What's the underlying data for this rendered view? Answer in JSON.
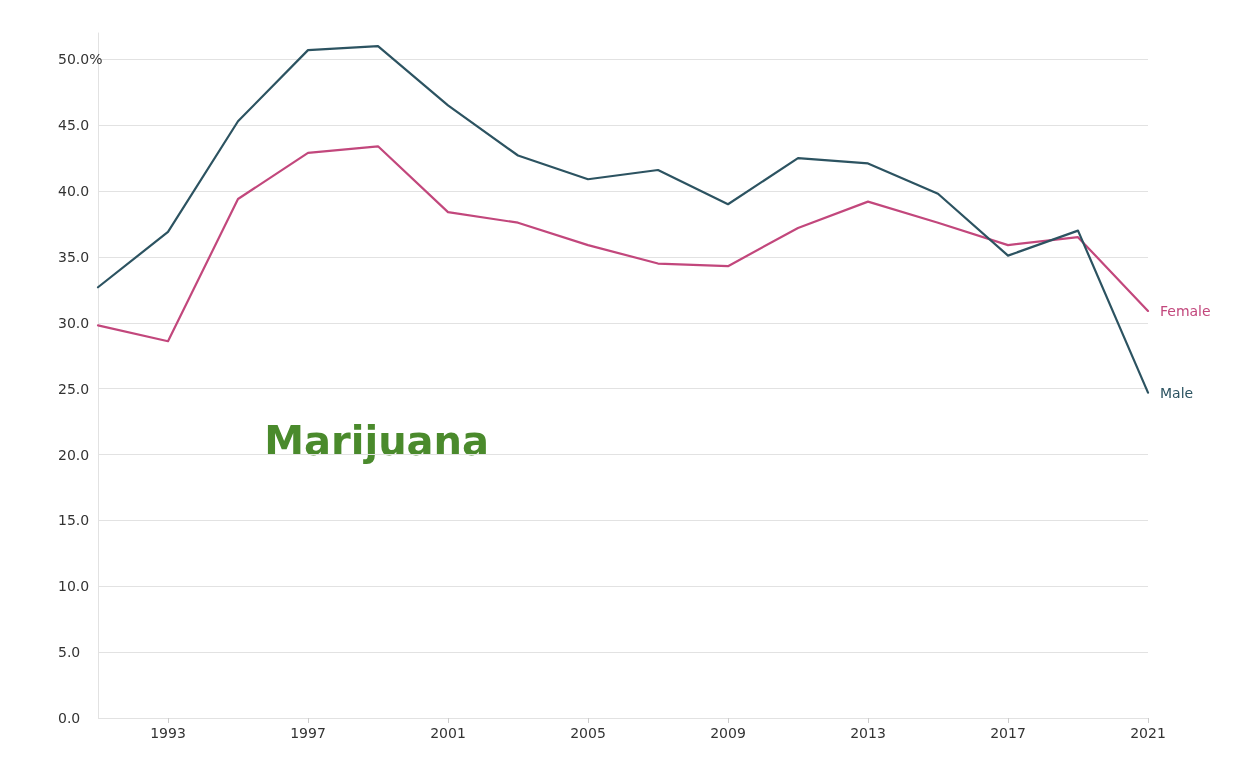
{
  "chart_data": {
    "type": "line",
    "annotations": [
      "Marijuana"
    ],
    "x": [
      1991,
      1993,
      1995,
      1997,
      1999,
      2001,
      2003,
      2005,
      2007,
      2009,
      2011,
      2013,
      2015,
      2017,
      2019,
      2021
    ],
    "series": [
      {
        "name": "Female",
        "color": "#c2477c",
        "values": [
          29.8,
          28.6,
          39.4,
          42.9,
          43.4,
          38.4,
          37.6,
          35.9,
          34.5,
          34.3,
          37.2,
          39.2,
          37.6,
          35.9,
          36.5,
          30.9
        ]
      },
      {
        "name": "Male",
        "color": "#2c5361",
        "values": [
          32.7,
          36.9,
          45.3,
          50.7,
          51.0,
          46.5,
          42.7,
          40.9,
          41.6,
          39.0,
          42.5,
          42.1,
          39.8,
          35.1,
          37.0,
          24.7
        ]
      }
    ],
    "xlim": [
      1991,
      2021
    ],
    "xticks": [
      1993,
      1997,
      2001,
      2005,
      2009,
      2013,
      2017,
      2021
    ],
    "ylim": [
      0,
      52
    ],
    "yticks": [
      {
        "value": 0,
        "label": "0.0"
      },
      {
        "value": 5,
        "label": "5.0"
      },
      {
        "value": 10,
        "label": "10.0"
      },
      {
        "value": 15,
        "label": "15.0"
      },
      {
        "value": 20,
        "label": "20.0"
      },
      {
        "value": 25,
        "label": "25.0"
      },
      {
        "value": 30,
        "label": "30.0"
      },
      {
        "value": 35,
        "label": "35.0"
      },
      {
        "value": 40,
        "label": "40.0"
      },
      {
        "value": 45,
        "label": "45.0"
      },
      {
        "value": 50,
        "label": "50.0%"
      }
    ],
    "grid": "y",
    "legend": false,
    "marker": "none",
    "line_style": "solid"
  }
}
